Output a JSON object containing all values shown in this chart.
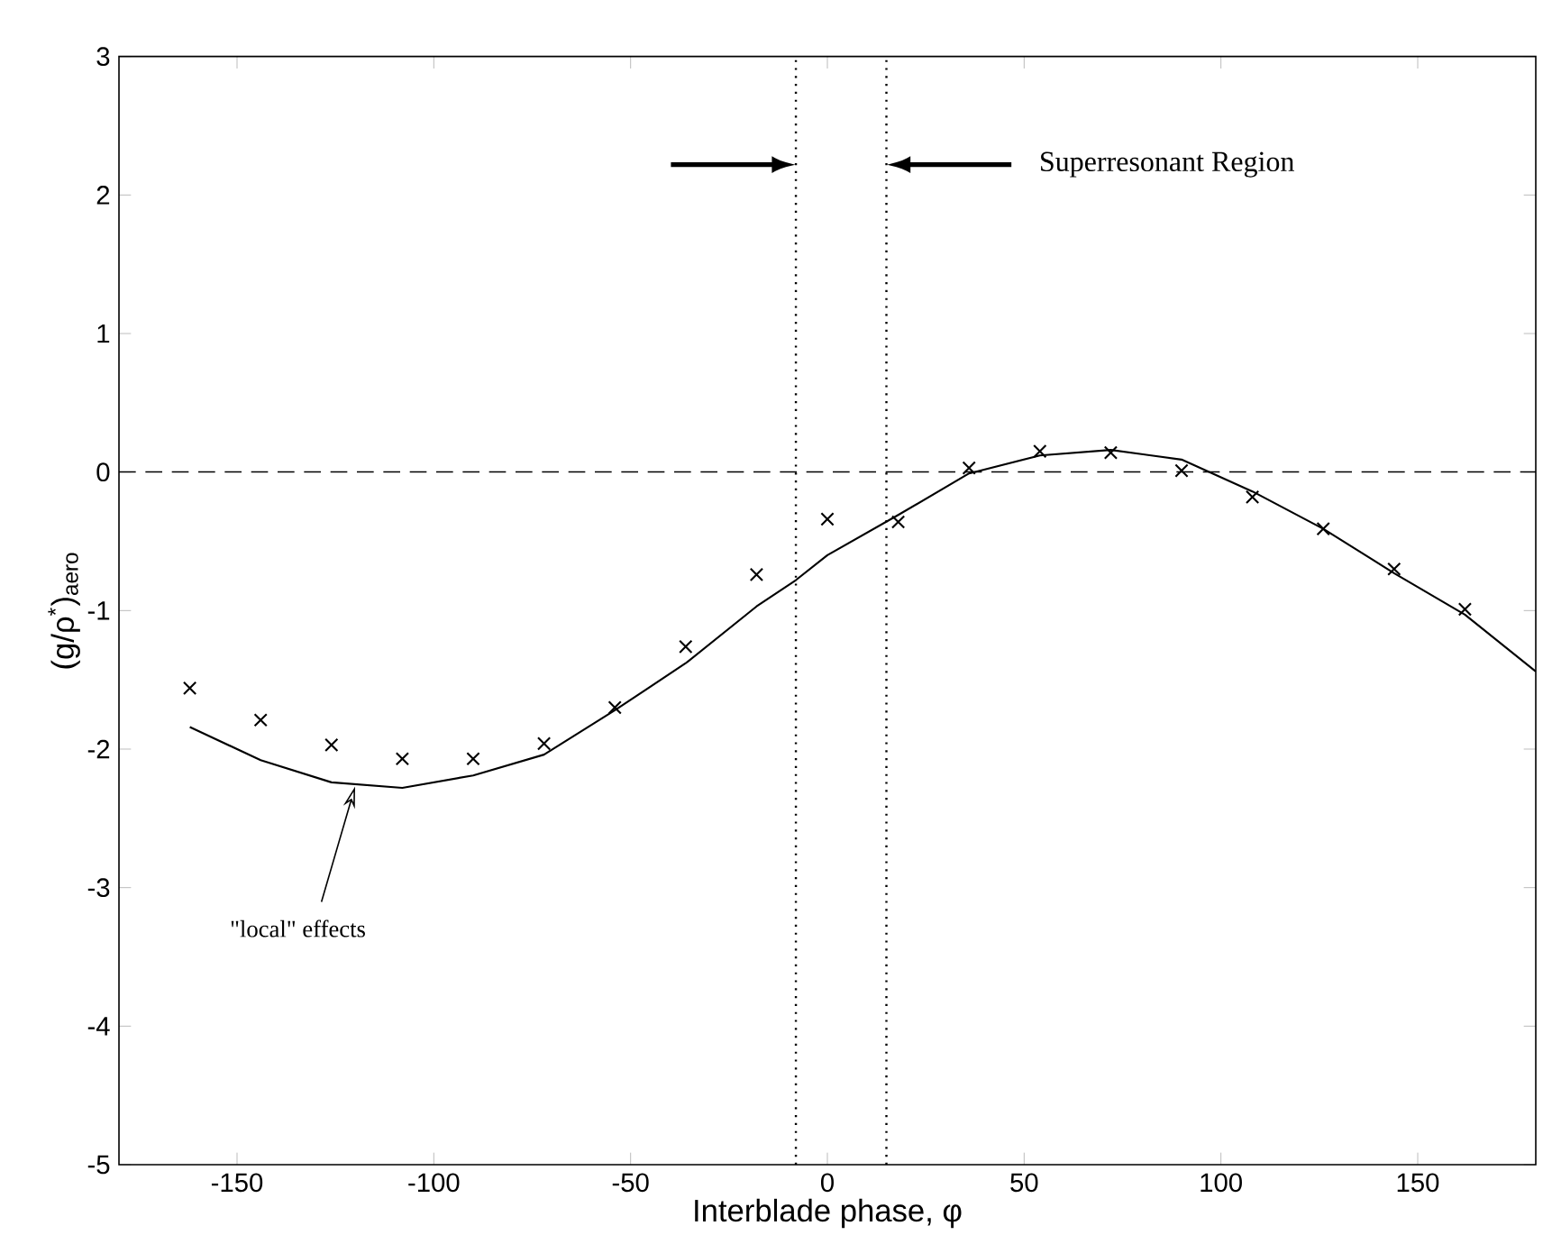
{
  "chart_data": {
    "type": "line",
    "xlabel": "Interblade phase, φ",
    "ylabel": "(g/ρ$^{*}$)$_{aero}$",
    "xlim": [
      -180,
      180
    ],
    "ylim": [
      -5,
      3
    ],
    "xticks": [
      -150,
      -100,
      -50,
      0,
      50,
      100,
      150
    ],
    "yticks": [
      -5,
      -4,
      -3,
      -2,
      -1,
      0,
      1,
      2,
      3
    ],
    "series": [
      {
        "color": "#000000",
        "marker": "none",
        "line_style": "solid",
        "x": [
          -162,
          -144,
          -126,
          -108,
          -90,
          -72,
          -54,
          -36,
          -18,
          -8,
          0,
          18,
          36,
          54,
          72,
          90,
          108,
          126,
          144,
          162,
          180
        ],
        "values": [
          -1.84,
          -2.08,
          -2.24,
          -2.28,
          -2.19,
          -2.04,
          -1.72,
          -1.38,
          -0.97,
          -0.78,
          -0.6,
          -0.31,
          -0.01,
          0.12,
          0.16,
          0.09,
          -0.14,
          -0.41,
          -0.73,
          -1.03,
          -1.44
        ]
      },
      {
        "type": "scatter",
        "color": "#000000",
        "marker": "cross",
        "x": [
          -162,
          -144,
          -126,
          -108,
          -90,
          -72,
          -54,
          -36,
          -18,
          0,
          18,
          36,
          54,
          72,
          90,
          108,
          126,
          144,
          162
        ],
        "values": [
          -1.56,
          -1.79,
          -1.97,
          -2.07,
          -2.07,
          -1.96,
          -1.7,
          -1.26,
          -0.74,
          -0.34,
          -0.36,
          0.03,
          0.15,
          0.14,
          0.01,
          -0.18,
          -0.41,
          -0.7,
          -0.99
        ]
      }
    ],
    "ref_lines": [
      {
        "axis": "y",
        "value": 0,
        "color": "#000000",
        "line_style": "dashed"
      },
      {
        "axis": "x",
        "value": -8,
        "color": "#000000",
        "line_style": "dotted"
      },
      {
        "axis": "x",
        "value": 15,
        "color": "#000000",
        "line_style": "dotted"
      }
    ],
    "annotations": [
      "Superresonant Region",
      "\"local\" effects"
    ]
  }
}
